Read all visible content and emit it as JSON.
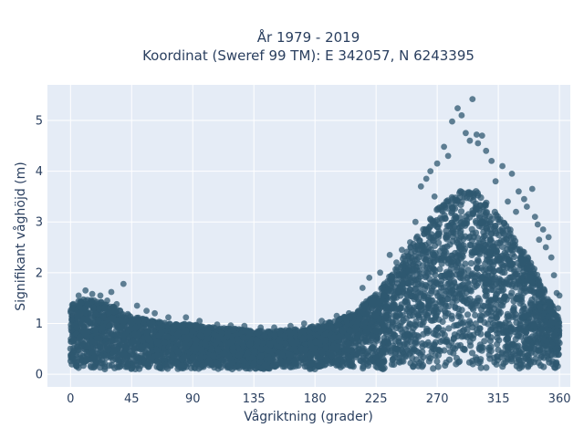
{
  "chart_data": {
    "type": "scatter",
    "title_lines": [
      "År 1979 - 2019",
      "Koordinat (Sweref 99 TM): E 342057, N 6243395"
    ],
    "xlabel": "Vågriktning (grader)",
    "ylabel": "Signifikant våghöjd (m)",
    "xlim": [
      -17,
      368
    ],
    "ylim": [
      -0.25,
      5.7
    ],
    "xticks": [
      0,
      45,
      90,
      135,
      180,
      225,
      270,
      315,
      360
    ],
    "yticks": [
      0,
      1,
      2,
      3,
      4,
      5
    ],
    "grid": true,
    "marker_color": "#2f5870",
    "background_color": "#e5ecf6",
    "envelope": {
      "x": [
        0,
        10,
        20,
        30,
        45,
        60,
        75,
        90,
        105,
        120,
        135,
        150,
        165,
        180,
        195,
        210,
        225,
        240,
        255,
        270,
        280,
        290,
        300,
        310,
        320,
        330,
        340,
        350,
        360
      ],
      "upper": [
        1.35,
        1.5,
        1.45,
        1.35,
        1.15,
        1.05,
        1.0,
        0.98,
        0.92,
        0.9,
        0.85,
        0.85,
        0.88,
        0.95,
        1.05,
        1.25,
        1.6,
        2.1,
        2.7,
        3.25,
        3.5,
        3.65,
        3.6,
        3.3,
        3.0,
        2.6,
        2.15,
        1.6,
        1.1
      ],
      "lower": [
        0.1,
        0.1,
        0.1,
        0.1,
        0.1,
        0.1,
        0.1,
        0.1,
        0.1,
        0.1,
        0.1,
        0.1,
        0.1,
        0.1,
        0.1,
        0.1,
        0.1,
        0.1,
        0.1,
        0.1,
        0.1,
        0.1,
        0.1,
        0.1,
        0.1,
        0.1,
        0.1,
        0.1,
        0.1
      ]
    },
    "outliers": [
      [
        296,
        5.42
      ],
      [
        285,
        5.24
      ],
      [
        288,
        5.1
      ],
      [
        281,
        4.98
      ],
      [
        291,
        4.75
      ],
      [
        299,
        4.72
      ],
      [
        294,
        4.6
      ],
      [
        303,
        4.7
      ],
      [
        275,
        4.48
      ],
      [
        300,
        4.55
      ],
      [
        306,
        4.4
      ],
      [
        278,
        4.3
      ],
      [
        310,
        4.2
      ],
      [
        270,
        4.15
      ],
      [
        318,
        4.1
      ],
      [
        265,
        4.0
      ],
      [
        262,
        3.85
      ],
      [
        325,
        3.95
      ],
      [
        258,
        3.7
      ],
      [
        330,
        3.6
      ],
      [
        334,
        3.45
      ],
      [
        340,
        3.65
      ],
      [
        336,
        3.3
      ],
      [
        342,
        3.1
      ],
      [
        348,
        2.85
      ],
      [
        345,
        2.65
      ],
      [
        350,
        2.5
      ],
      [
        354,
        2.3
      ],
      [
        356,
        1.95
      ],
      [
        358,
        1.6
      ],
      [
        235,
        2.35
      ],
      [
        240,
        2.2
      ],
      [
        228,
        2.0
      ],
      [
        250,
        2.6
      ],
      [
        220,
        1.9
      ],
      [
        215,
        1.7
      ],
      [
        39,
        1.78
      ],
      [
        30,
        1.62
      ],
      [
        22,
        1.55
      ],
      [
        11,
        1.65
      ],
      [
        16,
        1.58
      ],
      [
        6,
        1.55
      ],
      [
        27,
        1.45
      ],
      [
        34,
        1.38
      ],
      [
        49,
        1.35
      ],
      [
        56,
        1.25
      ],
      [
        62,
        1.2
      ],
      [
        72,
        1.12
      ],
      [
        85,
        1.12
      ],
      [
        95,
        1.05
      ],
      [
        108,
        0.98
      ],
      [
        118,
        0.96
      ],
      [
        128,
        0.95
      ],
      [
        140,
        0.92
      ],
      [
        150,
        0.92
      ],
      [
        162,
        0.95
      ],
      [
        172,
        1.0
      ],
      [
        185,
        1.05
      ],
      [
        196,
        1.15
      ],
      [
        205,
        1.2
      ],
      [
        244,
        2.45
      ],
      [
        254,
        3.0
      ],
      [
        268,
        3.5
      ],
      [
        313,
        3.8
      ],
      [
        322,
        3.4
      ],
      [
        328,
        3.2
      ],
      [
        344,
        2.95
      ],
      [
        352,
        2.7
      ],
      [
        360,
        1.55
      ],
      [
        359,
        1.3
      ]
    ]
  }
}
